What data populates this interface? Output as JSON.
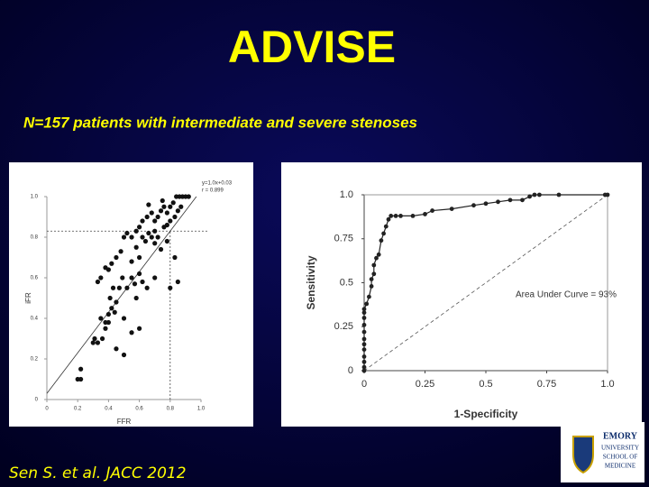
{
  "slide": {
    "title": "ADVISE",
    "subtitle": "N=157 patients with intermediate and severe stenoses",
    "citation": "Sen S. et al. JACC 2012",
    "logo": [
      "EMORY",
      "UNIVERSITY",
      "SCHOOL OF",
      "MEDICINE"
    ]
  },
  "chart_data": [
    {
      "type": "scatter",
      "xlabel": "FFR",
      "ylabel": "iFR",
      "annotations": [
        "y=1.0x+0.03",
        "r = 0.899"
      ],
      "fit": {
        "slope": 1.0,
        "intercept": 0.03
      },
      "cutoff_x": 0.8,
      "cutoff_y": 0.83,
      "xlim": [
        0,
        1
      ],
      "ylim": [
        0,
        1
      ],
      "xticks": [
        0,
        0.2,
        0.4,
        0.6,
        0.8,
        {
          "value": 1,
          "label": "1.0"
        }
      ],
      "yticks": [
        0,
        0.2,
        0.4,
        0.6,
        0.8,
        {
          "value": 1,
          "label": "1.0"
        }
      ],
      "color": "#111111",
      "x": [
        0.2,
        0.22,
        0.22,
        0.3,
        0.31,
        0.33,
        0.36,
        0.38,
        0.4,
        0.4,
        0.42,
        0.44,
        0.41,
        0.45,
        0.43,
        0.47,
        0.5,
        0.49,
        0.52,
        0.55,
        0.57,
        0.35,
        0.33,
        0.38,
        0.4,
        0.42,
        0.45,
        0.48,
        0.55,
        0.6,
        0.58,
        0.5,
        0.52,
        0.55,
        0.58,
        0.6,
        0.62,
        0.64,
        0.66,
        0.68,
        0.7,
        0.62,
        0.65,
        0.68,
        0.7,
        0.72,
        0.74,
        0.76,
        0.78,
        0.8,
        0.82,
        0.84,
        0.86,
        0.88,
        0.9,
        0.92,
        0.85,
        0.87,
        0.83,
        0.8,
        0.78,
        0.76,
        0.72,
        0.7,
        0.74,
        0.78,
        0.6,
        0.62,
        0.58,
        0.65,
        0.6,
        0.45,
        0.5,
        0.55,
        0.38,
        0.35,
        0.7,
        0.8,
        0.85,
        0.83,
        0.66,
        0.75
      ],
      "values": [
        0.1,
        0.1,
        0.15,
        0.28,
        0.3,
        0.28,
        0.3,
        0.38,
        0.38,
        0.42,
        0.45,
        0.43,
        0.5,
        0.48,
        0.55,
        0.55,
        0.4,
        0.6,
        0.55,
        0.6,
        0.57,
        0.6,
        0.58,
        0.65,
        0.64,
        0.67,
        0.7,
        0.73,
        0.68,
        0.7,
        0.75,
        0.8,
        0.82,
        0.8,
        0.83,
        0.85,
        0.8,
        0.78,
        0.82,
        0.8,
        0.83,
        0.88,
        0.9,
        0.92,
        0.88,
        0.9,
        0.93,
        0.95,
        0.92,
        0.95,
        0.97,
        1.0,
        1.0,
        1.0,
        1.0,
        1.0,
        0.93,
        0.95,
        0.9,
        0.88,
        0.86,
        0.85,
        0.8,
        0.77,
        0.74,
        0.78,
        0.62,
        0.58,
        0.5,
        0.55,
        0.35,
        0.25,
        0.22,
        0.33,
        0.35,
        0.4,
        0.6,
        0.55,
        0.58,
        0.7,
        0.96,
        0.98
      ]
    },
    {
      "type": "line",
      "xlabel": "1-Specificity",
      "ylabel": "Sensitivity",
      "annotations": [
        "Area Under Curve = 93%"
      ],
      "xlim": [
        0,
        1
      ],
      "ylim": [
        0,
        1
      ],
      "xticks": [
        0,
        0.25,
        0.5,
        0.75,
        {
          "value": 1,
          "label": "1.0"
        }
      ],
      "yticks": [
        0,
        0.25,
        0.5,
        0.75,
        {
          "value": 1,
          "label": "1.0"
        }
      ],
      "x": [
        0,
        0,
        0,
        0,
        0,
        0,
        0,
        0,
        0,
        0,
        0,
        0,
        0.01,
        0.02,
        0.03,
        0.03,
        0.04,
        0.04,
        0.05,
        0.06,
        0.07,
        0.08,
        0.09,
        0.1,
        0.11,
        0.13,
        0.15,
        0.2,
        0.25,
        0.28,
        0.36,
        0.45,
        0.5,
        0.55,
        0.6,
        0.65,
        0.68,
        0.7,
        0.72,
        0.8,
        0.99,
        1.0
      ],
      "series": [
        {
          "color": "#222222",
          "values": [
            0,
            0.02,
            0.05,
            0.08,
            0.12,
            0.15,
            0.18,
            0.22,
            0.26,
            0.3,
            0.33,
            0.35,
            0.38,
            0.42,
            0.48,
            0.52,
            0.55,
            0.6,
            0.64,
            0.66,
            0.74,
            0.78,
            0.82,
            0.86,
            0.88,
            0.88,
            0.88,
            0.88,
            0.89,
            0.91,
            0.92,
            0.94,
            0.95,
            0.96,
            0.97,
            0.97,
            0.99,
            1.0,
            1.0,
            1.0,
            1.0,
            1.0
          ]
        }
      ]
    }
  ]
}
